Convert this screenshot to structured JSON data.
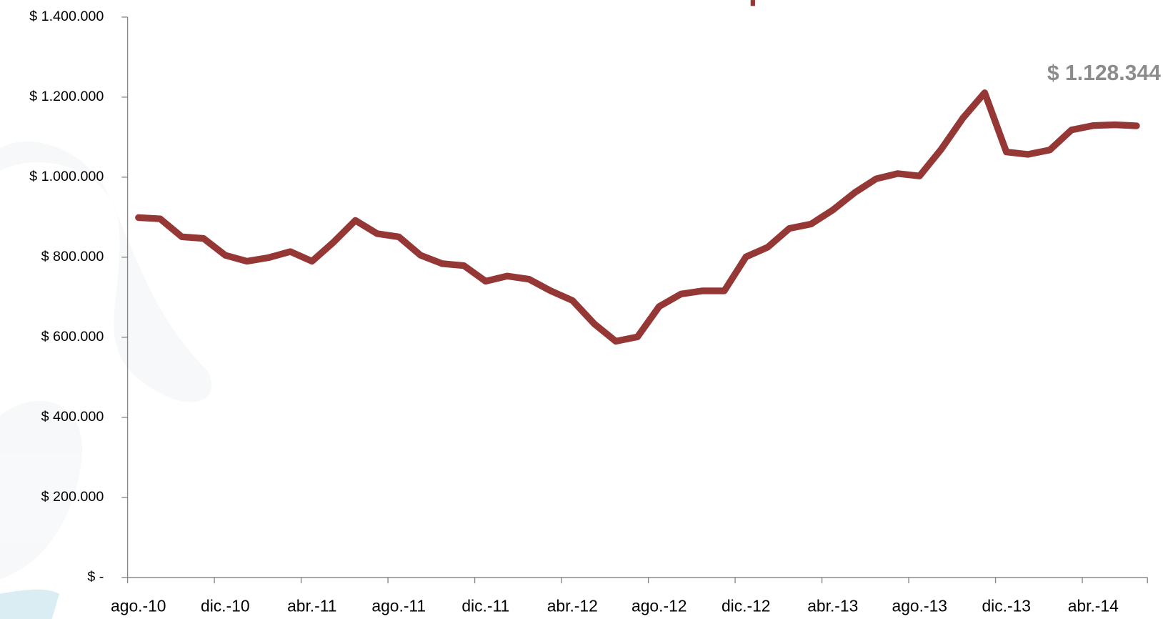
{
  "chart_data": {
    "type": "line",
    "categories": [
      "ago.-10",
      null,
      null,
      null,
      "dic.-10",
      null,
      null,
      null,
      "abr.-11",
      null,
      null,
      null,
      "ago.-11",
      null,
      null,
      null,
      "dic.-11",
      null,
      null,
      null,
      "abr.-12",
      null,
      null,
      null,
      "ago.-12",
      null,
      null,
      null,
      "dic.-12",
      null,
      null,
      null,
      "abr.-13",
      null,
      null,
      null,
      "ago.-13",
      null,
      null,
      null,
      "dic.-13",
      null,
      null,
      null,
      "abr.-14",
      null,
      null
    ],
    "series": [
      {
        "color": "#953735",
        "values": [
          899000,
          896000,
          851000,
          847000,
          805000,
          790000,
          799000,
          814000,
          790000,
          838000,
          892000,
          859000,
          851000,
          805000,
          784000,
          779000,
          740000,
          753000,
          745000,
          716000,
          692000,
          634000,
          590000,
          601000,
          677000,
          708000,
          716000,
          716000,
          801000,
          825000,
          872000,
          883000,
          918000,
          961000,
          996000,
          1009000,
          1003000,
          1070000,
          1148000,
          1211000,
          1063000,
          1057000,
          1068000,
          1118000,
          1129000,
          1131000,
          1128344
        ],
        "value_labels": [
          null,
          null,
          null,
          null,
          null,
          null,
          null,
          null,
          null,
          null,
          null,
          null,
          null,
          null,
          null,
          null,
          null,
          null,
          null,
          null,
          null,
          null,
          null,
          null,
          null,
          null,
          null,
          null,
          null,
          null,
          null,
          null,
          null,
          null,
          null,
          null,
          null,
          null,
          null,
          null,
          null,
          null,
          null,
          null,
          null,
          null,
          "$ 1.128.344"
        ]
      }
    ],
    "ylim": [
      0,
      1400000
    ],
    "yticks": [
      {
        "value": 0,
        "label": "$ -"
      },
      {
        "value": 200000,
        "label": "$ 200.000"
      },
      {
        "value": 400000,
        "label": "$ 400.000"
      },
      {
        "value": 600000,
        "label": "$ 600.000"
      },
      {
        "value": 800000,
        "label": "$ 800.000"
      },
      {
        "value": 1000000,
        "label": "$ 1.000.000"
      },
      {
        "value": 1200000,
        "label": "$ 1.200.000"
      },
      {
        "value": 1400000,
        "label": "$ 1.400.000"
      }
    ],
    "grid": false
  }
}
